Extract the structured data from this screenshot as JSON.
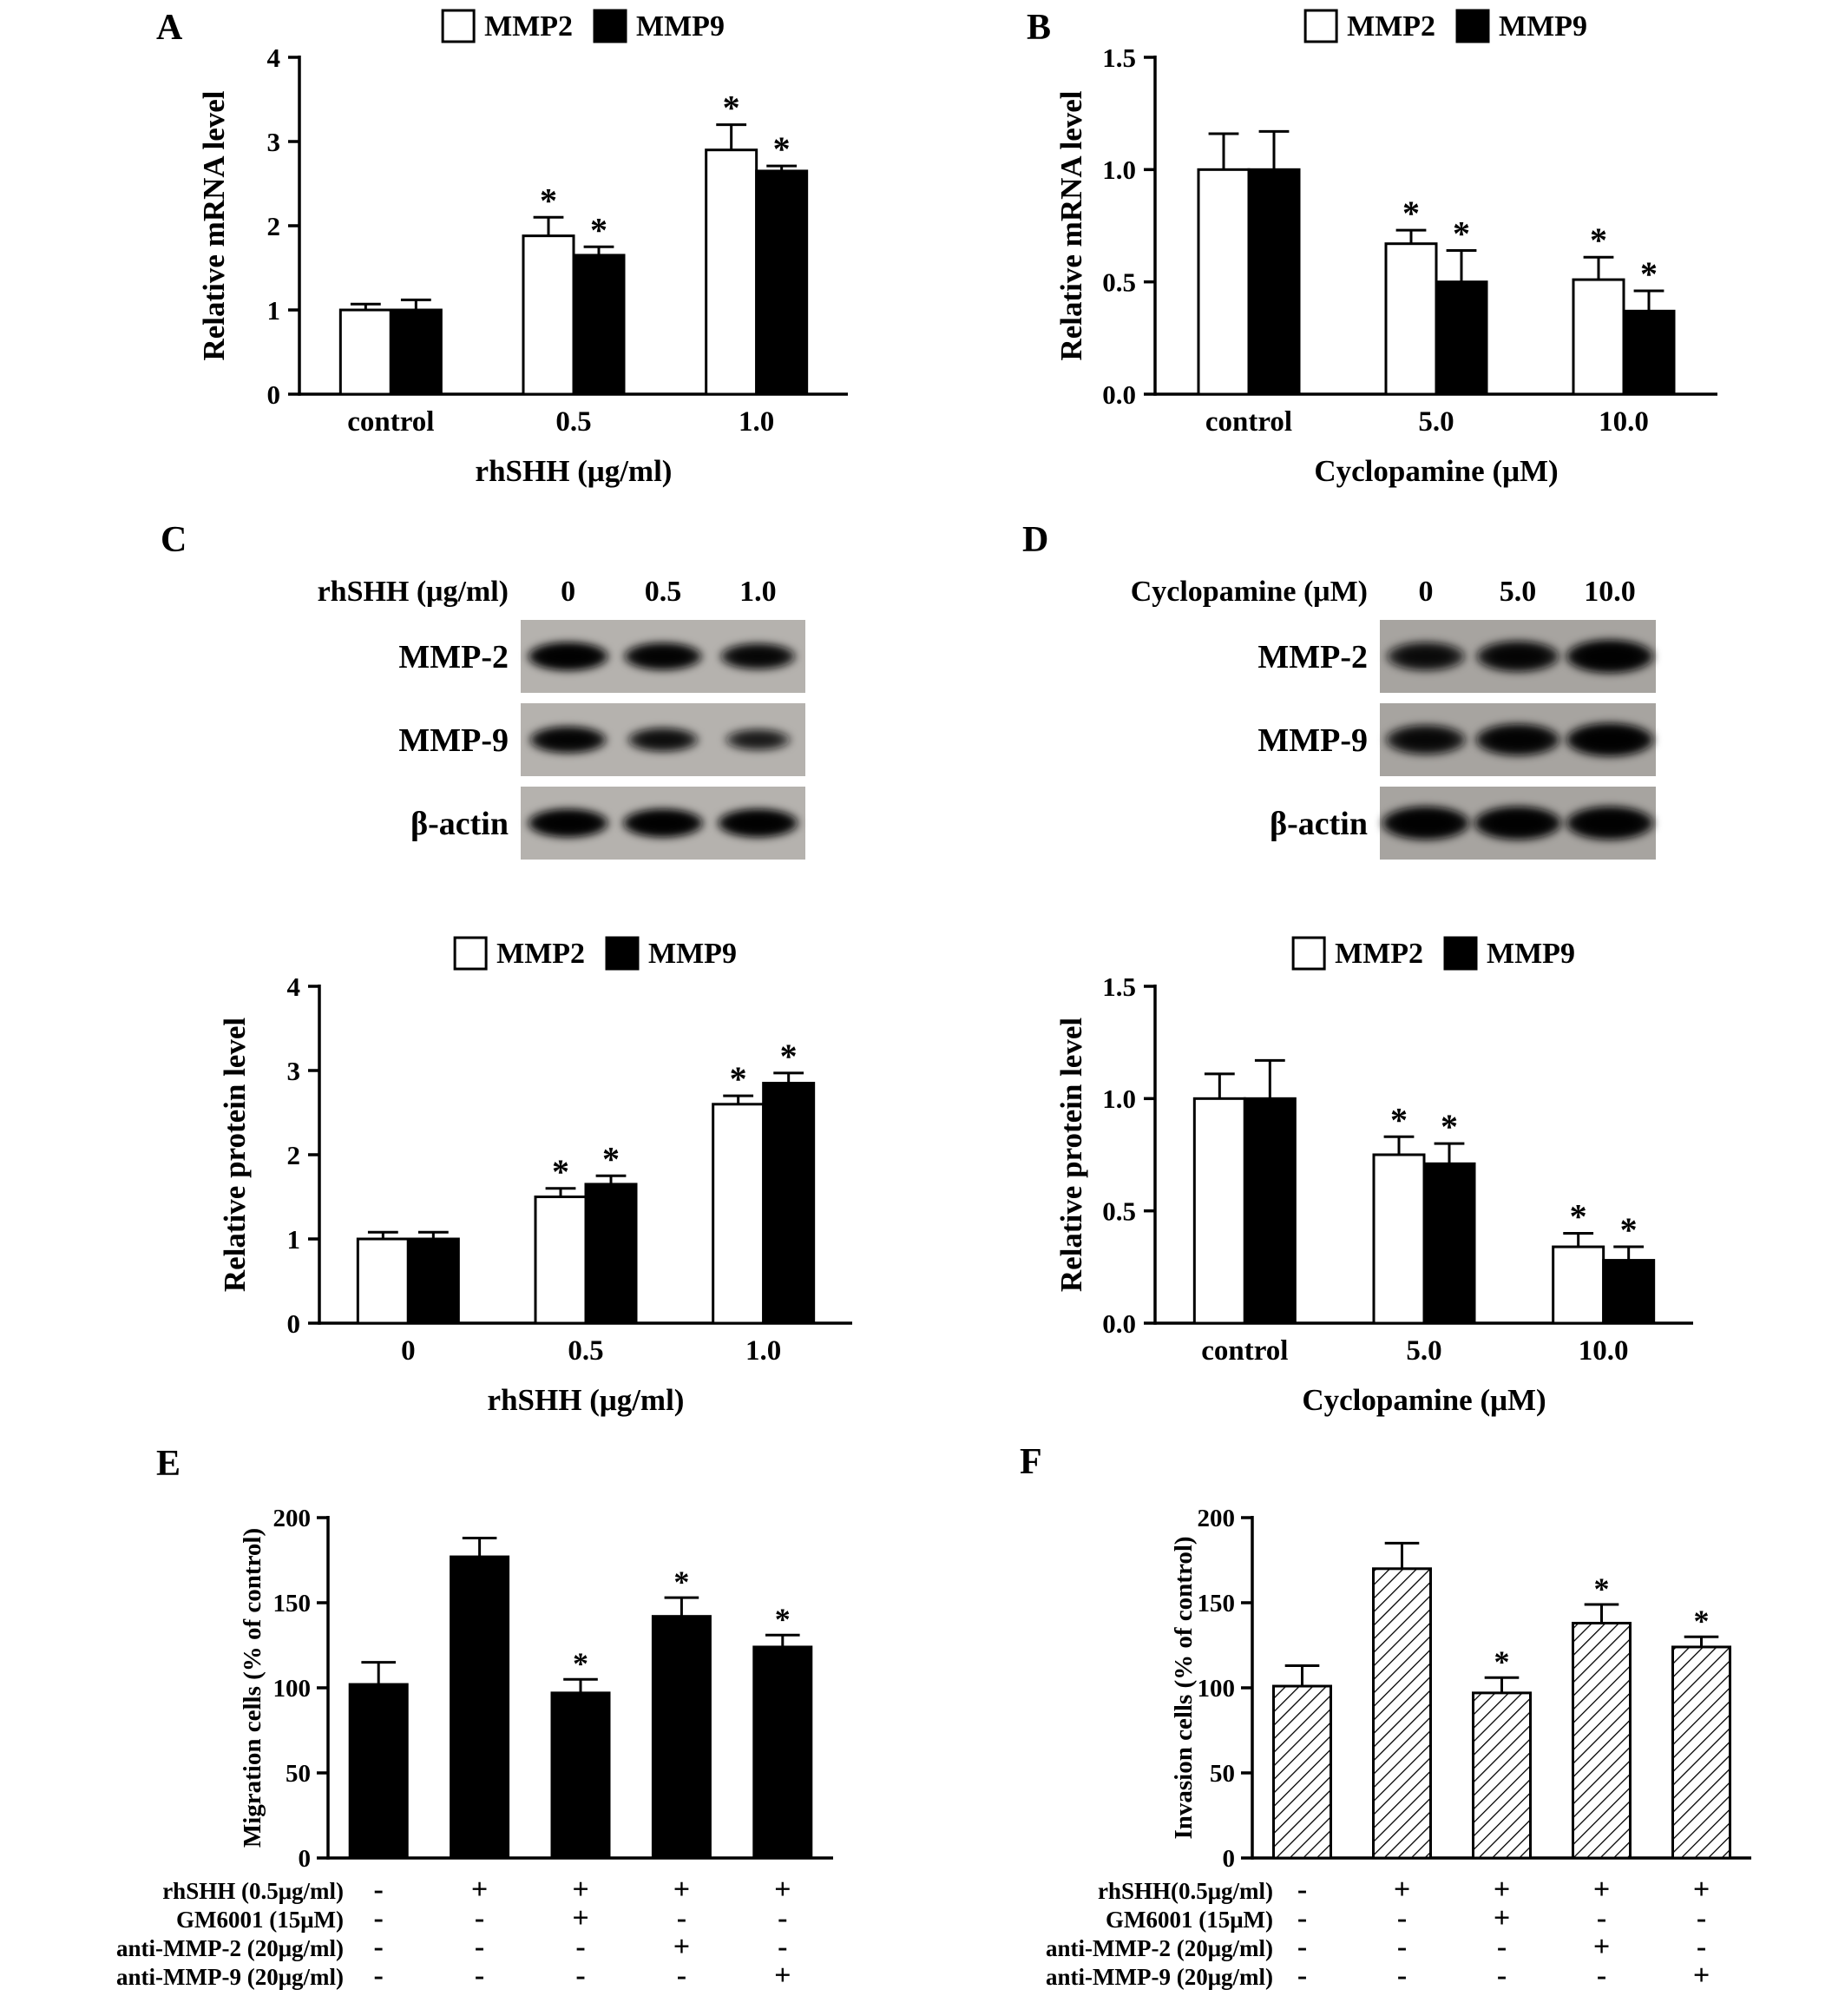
{
  "figure": {
    "background": "#ffffff",
    "ink": "#000000"
  },
  "chart_data": [
    {
      "panel": "A",
      "type": "bar",
      "legend": [
        "MMP2",
        "MMP9"
      ],
      "legend_pos": "top",
      "ylabel": "Relative mRNA level",
      "xlabel": "rhSHH (μg/ml)",
      "ylim": [
        0,
        4
      ],
      "ytick_vals": [
        0,
        1,
        2,
        3,
        4
      ],
      "ytick_labels": [
        "0",
        "1",
        "2",
        "3",
        "4"
      ],
      "categories": [
        "control",
        "0.5",
        "1.0"
      ],
      "grid": false,
      "series": [
        {
          "name": "MMP2",
          "fill": "#ffffff",
          "values": [
            1.0,
            1.88,
            2.9
          ],
          "errors": [
            0.07,
            0.22,
            0.3
          ],
          "sig": [
            "",
            "*",
            "*"
          ]
        },
        {
          "name": "MMP9",
          "fill": "#000000",
          "values": [
            1.0,
            1.65,
            2.65
          ],
          "errors": [
            0.12,
            0.1,
            0.06
          ],
          "sig": [
            "",
            "*",
            "*"
          ]
        }
      ]
    },
    {
      "panel": "B",
      "type": "bar",
      "legend": [
        "MMP2",
        "MMP9"
      ],
      "legend_pos": "top",
      "ylabel": "Relative mRNA level",
      "xlabel": "Cyclopamine (μM)",
      "ylim": [
        0,
        1.5
      ],
      "ytick_vals": [
        0,
        0.5,
        1.0,
        1.5
      ],
      "ytick_labels": [
        "0.0",
        "0.5",
        "1.0",
        "1.5"
      ],
      "categories": [
        "control",
        "5.0",
        "10.0"
      ],
      "grid": false,
      "series": [
        {
          "name": "MMP2",
          "fill": "#ffffff",
          "values": [
            1.0,
            0.67,
            0.51
          ],
          "errors": [
            0.16,
            0.06,
            0.1
          ],
          "sig": [
            "",
            "*",
            "*"
          ]
        },
        {
          "name": "MMP9",
          "fill": "#000000",
          "values": [
            1.0,
            0.5,
            0.37
          ],
          "errors": [
            0.17,
            0.14,
            0.09
          ],
          "sig": [
            "",
            "*",
            "*"
          ]
        }
      ]
    },
    {
      "panel": "C",
      "type": "bar",
      "blot": {
        "header": "rhSHH (μg/ml)",
        "lanes": [
          "0",
          "0.5",
          "1.0"
        ],
        "rows": [
          {
            "label": "MMP-2",
            "intensities": [
              1.0,
              0.9,
              0.78
            ]
          },
          {
            "label": "MMP-9",
            "intensities": [
              0.85,
              0.6,
              0.38
            ]
          },
          {
            "label": "β-actin",
            "intensities": [
              1.0,
              1.0,
              1.0
            ]
          }
        ]
      },
      "legend": [
        "MMP2",
        "MMP9"
      ],
      "legend_pos": "top",
      "ylabel": "Relative protein level",
      "xlabel": "rhSHH (μg/ml)",
      "ylim": [
        0,
        4
      ],
      "ytick_vals": [
        0,
        1,
        2,
        3,
        4
      ],
      "ytick_labels": [
        "0",
        "1",
        "2",
        "3",
        "4"
      ],
      "categories": [
        "0",
        "0.5",
        "1.0"
      ],
      "grid": false,
      "series": [
        {
          "name": "MMP2",
          "fill": "#ffffff",
          "values": [
            1.0,
            1.5,
            2.6
          ],
          "errors": [
            0.08,
            0.1,
            0.1
          ],
          "sig": [
            "",
            "*",
            "*"
          ]
        },
        {
          "name": "MMP9",
          "fill": "#000000",
          "values": [
            1.0,
            1.65,
            2.85
          ],
          "errors": [
            0.08,
            0.1,
            0.12
          ],
          "sig": [
            "",
            "*",
            "*"
          ]
        }
      ]
    },
    {
      "panel": "D",
      "type": "bar",
      "blot": {
        "header": "Cyclopamine (μM)",
        "lanes": [
          "0",
          "5.0",
          "10.0"
        ],
        "rows": [
          {
            "label": "MMP-2",
            "intensities": [
              0.65,
              0.82,
              1.0
            ]
          },
          {
            "label": "MMP-9",
            "intensities": [
              0.72,
              0.88,
              1.0
            ]
          },
          {
            "label": "β-actin",
            "intensities": [
              1.0,
              1.0,
              1.0
            ]
          }
        ]
      },
      "legend": [
        "MMP2",
        "MMP9"
      ],
      "legend_pos": "top",
      "ylabel": "Relative protein level",
      "xlabel": "Cyclopamine  (μM)",
      "ylim": [
        0,
        1.5
      ],
      "ytick_vals": [
        0,
        0.5,
        1.0,
        1.5
      ],
      "ytick_labels": [
        "0.0",
        "0.5",
        "1.0",
        "1.5"
      ],
      "categories": [
        "control",
        "5.0",
        "10.0"
      ],
      "grid": false,
      "series": [
        {
          "name": "MMP2",
          "fill": "#ffffff",
          "values": [
            1.0,
            0.75,
            0.34
          ],
          "errors": [
            0.11,
            0.08,
            0.06
          ],
          "sig": [
            "",
            "*",
            "*"
          ]
        },
        {
          "name": "MMP9",
          "fill": "#000000",
          "values": [
            1.0,
            0.71,
            0.28
          ],
          "errors": [
            0.17,
            0.09,
            0.06
          ],
          "sig": [
            "",
            "*",
            "*"
          ]
        }
      ]
    },
    {
      "panel": "E",
      "type": "bar",
      "ylabel": "Migration cells  (% of control)",
      "xlabel": "",
      "ylim": [
        0,
        200
      ],
      "ytick_vals": [
        0,
        50,
        100,
        150,
        200
      ],
      "ytick_labels": [
        "0",
        "50",
        "100",
        "150",
        "200"
      ],
      "grid": false,
      "series": [
        {
          "name": "Migration",
          "fill": "#000000",
          "values": [
            102,
            177,
            97,
            142,
            124
          ],
          "errors": [
            13,
            11,
            8,
            11,
            7
          ],
          "sig": [
            "",
            "",
            "*",
            "*",
            "*"
          ]
        }
      ],
      "treatments": {
        "rows": [
          {
            "label": "rhSHH (0.5μg/ml)",
            "signs": [
              "-",
              "+",
              "+",
              "+",
              "+"
            ]
          },
          {
            "label": "GM6001 (15μM)",
            "signs": [
              "-",
              "-",
              "+",
              "-",
              "-"
            ]
          },
          {
            "label": "anti-MMP-2 (20μg/ml)",
            "signs": [
              "-",
              "-",
              "-",
              "+",
              "-"
            ]
          },
          {
            "label": "anti-MMP-9 (20μg/ml)",
            "signs": [
              "-",
              "-",
              "-",
              "-",
              "+"
            ]
          }
        ]
      }
    },
    {
      "panel": "F",
      "type": "bar",
      "ylabel": "Invasion cells  (% of control)",
      "xlabel": "",
      "ylim": [
        0,
        200
      ],
      "ytick_vals": [
        0,
        50,
        100,
        150,
        200
      ],
      "ytick_labels": [
        "0",
        "50",
        "100",
        "150",
        "200"
      ],
      "grid": false,
      "series": [
        {
          "name": "Invasion",
          "fill": "hatch",
          "values": [
            101,
            170,
            97,
            138,
            124
          ],
          "errors": [
            12,
            15,
            9,
            11,
            6
          ],
          "sig": [
            "",
            "",
            "*",
            "*",
            "*"
          ]
        }
      ],
      "treatments": {
        "rows": [
          {
            "label": "rhSHH(0.5μg/ml)",
            "signs": [
              "-",
              "+",
              "+",
              "+",
              "+"
            ]
          },
          {
            "label": "GM6001 (15μM)",
            "signs": [
              "-",
              "-",
              "+",
              "-",
              "-"
            ]
          },
          {
            "label": "anti-MMP-2 (20μg/ml)",
            "signs": [
              "-",
              "-",
              "-",
              "+",
              "-"
            ]
          },
          {
            "label": "anti-MMP-9 (20μg/ml)",
            "signs": [
              "-",
              "-",
              "-",
              "-",
              "+"
            ]
          }
        ]
      }
    }
  ]
}
